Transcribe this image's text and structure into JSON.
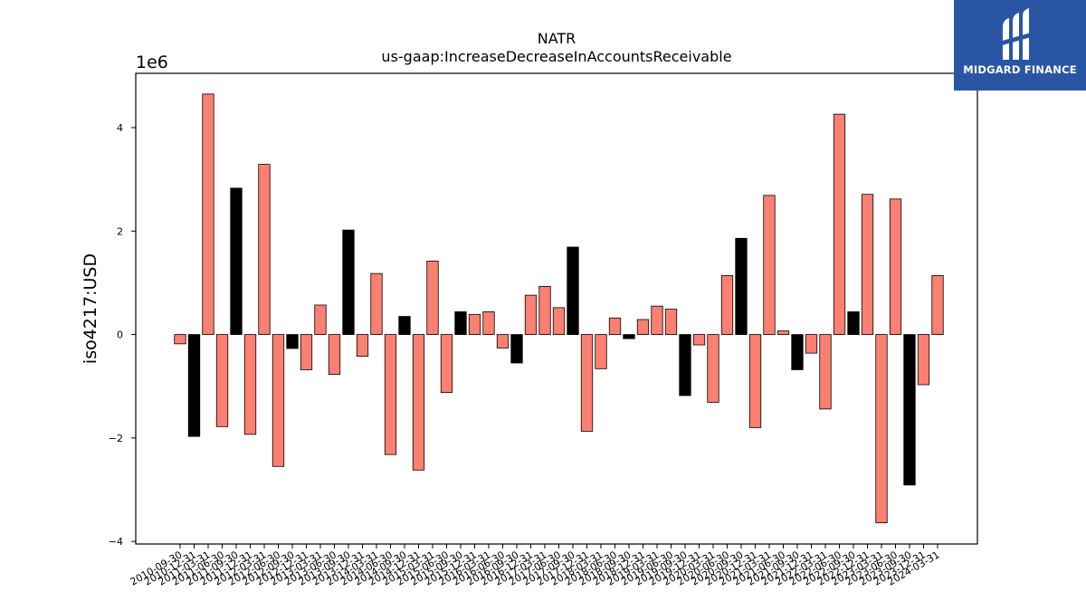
{
  "logo": {
    "text": "MIDGARD FINANCE",
    "icon": "midgard-logo-icon",
    "background": "#2a55a4"
  },
  "chart_data": {
    "type": "bar",
    "title": "NATR",
    "subtitle": "us-gaap:IncreaseDecreaseInAccountsReceivable",
    "ylabel": "iso4217:USD",
    "xlabel": "",
    "y_exponent_label": "1e6",
    "ylim": [
      -4.05,
      5.05
    ],
    "yticks": [
      -4,
      -2,
      0,
      2,
      4
    ],
    "ytick_labels": [
      "−4",
      "−2",
      "0",
      "2",
      "4"
    ],
    "grid": false,
    "colors": {
      "quarter": "#fa8072",
      "annual": "#000000"
    },
    "categories": [
      "2010-09-30",
      "2010-12-31",
      "2011-03-31",
      "2011-06-30",
      "2011-09-30",
      "2011-12-31",
      "2012-03-31",
      "2012-06-30",
      "2012-09-30",
      "2012-12-31",
      "2013-03-31",
      "2013-06-30",
      "2013-09-30",
      "2013-12-31",
      "2014-03-31",
      "2014-06-30",
      "2014-09-30",
      "2014-12-31",
      "2015-03-31",
      "2015-06-30",
      "2015-09-30",
      "2015-12-31",
      "2016-03-31",
      "2016-06-30",
      "2016-09-30",
      "2016-12-31",
      "2017-03-31",
      "2017-06-30",
      "2017-09-30",
      "2017-12-31",
      "2018-03-31",
      "2018-06-30",
      "2018-09-30",
      "2018-12-31",
      "2019-03-31",
      "2019-06-30",
      "2019-09-30",
      "2019-12-31",
      "2020-03-31",
      "2020-06-30",
      "2020-09-30",
      "2020-12-31",
      "2021-03-31",
      "2021-06-30",
      "2021-09-30",
      "2021-12-31",
      "2022-03-31",
      "2022-06-30",
      "2022-09-30",
      "2022-12-31",
      "2023-03-31",
      "2023-06-30",
      "2023-09-30",
      "2023-12-31",
      "2024-03-31"
    ],
    "values": [
      -0.18,
      -1.97,
      4.65,
      -1.78,
      2.83,
      -1.93,
      3.29,
      -2.55,
      -0.27,
      -0.68,
      0.57,
      -0.77,
      2.02,
      -0.42,
      1.18,
      -2.32,
      0.35,
      -2.62,
      1.42,
      -1.12,
      0.44,
      0.39,
      0.44,
      -0.26,
      -0.55,
      0.76,
      0.93,
      0.52,
      1.69,
      -1.87,
      -0.66,
      0.32,
      -0.08,
      0.29,
      0.55,
      0.49,
      -1.18,
      -0.2,
      -1.31,
      1.14,
      1.86,
      -1.8,
      2.69,
      0.07,
      -0.68,
      -0.36,
      -1.44,
      4.26,
      0.44,
      2.71,
      -3.64,
      2.62,
      -2.91,
      -0.97,
      1.14
    ],
    "series_type": [
      "q",
      "a",
      "q",
      "q",
      "a",
      "q",
      "q",
      "q",
      "a",
      "q",
      "q",
      "q",
      "a",
      "q",
      "q",
      "q",
      "a",
      "q",
      "q",
      "q",
      "a",
      "q",
      "q",
      "q",
      "a",
      "q",
      "q",
      "q",
      "a",
      "q",
      "q",
      "q",
      "a",
      "q",
      "q",
      "q",
      "a",
      "q",
      "q",
      "q",
      "a",
      "q",
      "q",
      "q",
      "a",
      "q",
      "q",
      "q",
      "a",
      "q",
      "q",
      "q",
      "a",
      "q",
      "q"
    ]
  }
}
